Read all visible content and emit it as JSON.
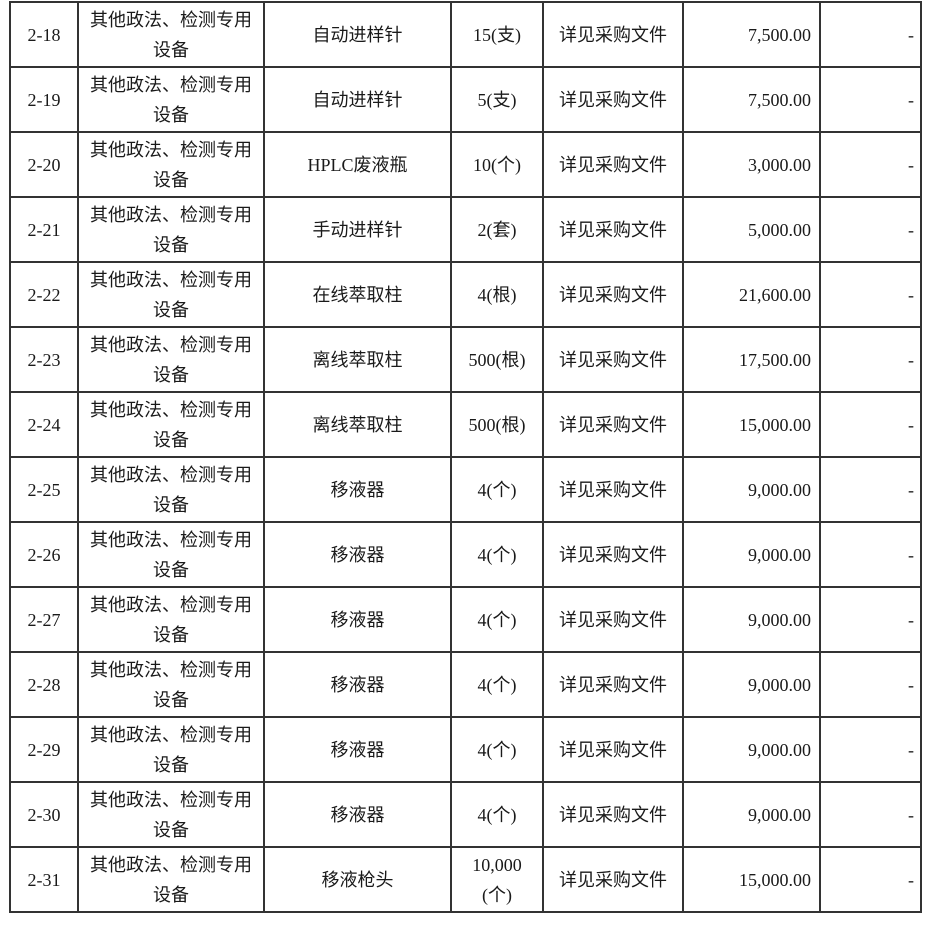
{
  "rows": [
    {
      "no": "2-18",
      "category": "其他政法、检测专用设备",
      "name": "自动进样针",
      "qty": "15(支)",
      "spec": "详见采购文件",
      "amount": "7,500.00",
      "remark": "-"
    },
    {
      "no": "2-19",
      "category": "其他政法、检测专用设备",
      "name": "自动进样针",
      "qty": "5(支)",
      "spec": "详见采购文件",
      "amount": "7,500.00",
      "remark": "-"
    },
    {
      "no": "2-20",
      "category": "其他政法、检测专用设备",
      "name": "HPLC废液瓶",
      "qty": "10(个)",
      "spec": "详见采购文件",
      "amount": "3,000.00",
      "remark": "-"
    },
    {
      "no": "2-21",
      "category": "其他政法、检测专用设备",
      "name": "手动进样针",
      "qty": "2(套)",
      "spec": "详见采购文件",
      "amount": "5,000.00",
      "remark": "-"
    },
    {
      "no": "2-22",
      "category": "其他政法、检测专用设备",
      "name": "在线萃取柱",
      "qty": "4(根)",
      "spec": "详见采购文件",
      "amount": "21,600.00",
      "remark": "-"
    },
    {
      "no": "2-23",
      "category": "其他政法、检测专用设备",
      "name": "离线萃取柱",
      "qty": "500(根)",
      "spec": "详见采购文件",
      "amount": "17,500.00",
      "remark": "-"
    },
    {
      "no": "2-24",
      "category": "其他政法、检测专用设备",
      "name": "离线萃取柱",
      "qty": "500(根)",
      "spec": "详见采购文件",
      "amount": "15,000.00",
      "remark": "-"
    },
    {
      "no": "2-25",
      "category": "其他政法、检测专用设备",
      "name": "移液器",
      "qty": "4(个)",
      "spec": "详见采购文件",
      "amount": "9,000.00",
      "remark": "-"
    },
    {
      "no": "2-26",
      "category": "其他政法、检测专用设备",
      "name": "移液器",
      "qty": "4(个)",
      "spec": "详见采购文件",
      "amount": "9,000.00",
      "remark": "-"
    },
    {
      "no": "2-27",
      "category": "其他政法、检测专用设备",
      "name": "移液器",
      "qty": "4(个)",
      "spec": "详见采购文件",
      "amount": "9,000.00",
      "remark": "-"
    },
    {
      "no": "2-28",
      "category": "其他政法、检测专用设备",
      "name": "移液器",
      "qty": "4(个)",
      "spec": "详见采购文件",
      "amount": "9,000.00",
      "remark": "-"
    },
    {
      "no": "2-29",
      "category": "其他政法、检测专用设备",
      "name": "移液器",
      "qty": "4(个)",
      "spec": "详见采购文件",
      "amount": "9,000.00",
      "remark": "-"
    },
    {
      "no": "2-30",
      "category": "其他政法、检测专用设备",
      "name": "移液器",
      "qty": "4(个)",
      "spec": "详见采购文件",
      "amount": "9,000.00",
      "remark": "-"
    },
    {
      "no": "2-31",
      "category": "其他政法、检测专用设备",
      "name": "移液枪头",
      "qty": "10,000 (个)",
      "spec": "详见采购文件",
      "amount": "15,000.00",
      "remark": "-"
    }
  ]
}
